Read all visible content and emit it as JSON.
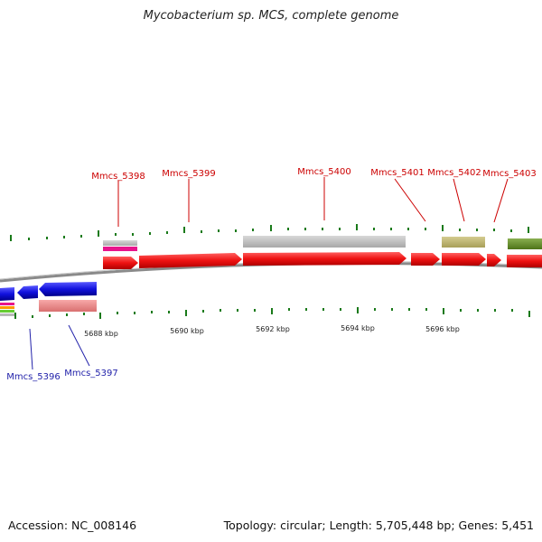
{
  "title": "Mycobacterium sp. MCS, complete genome",
  "colors": {
    "forward": "#ee1111",
    "reverse": "#1111cc",
    "tick": "#1a7a1a",
    "backbone": "#8a8a8a",
    "label_forward": "#cc0000",
    "label_reverse": "#2222aa"
  },
  "genes_top": [
    {
      "name": "Mmcs_5398"
    },
    {
      "name": "Mmcs_5399"
    },
    {
      "name": "Mmcs_5400"
    },
    {
      "name": "Mmcs_5401"
    },
    {
      "name": "Mmcs_5402"
    },
    {
      "name": "Mmcs_5403"
    }
  ],
  "genes_bottom": [
    {
      "name": "Mmcs_5396"
    },
    {
      "name": "Mmcs_5397"
    }
  ],
  "scale_labels": [
    "5688 kbp",
    "5690 kbp",
    "5692 kbp",
    "5694 kbp",
    "5696 kbp"
  ],
  "footer": {
    "accession": "Accession: NC_008146",
    "summary": "Topology: circular; Length: 5,705,448 bp; Genes: 5,451"
  }
}
